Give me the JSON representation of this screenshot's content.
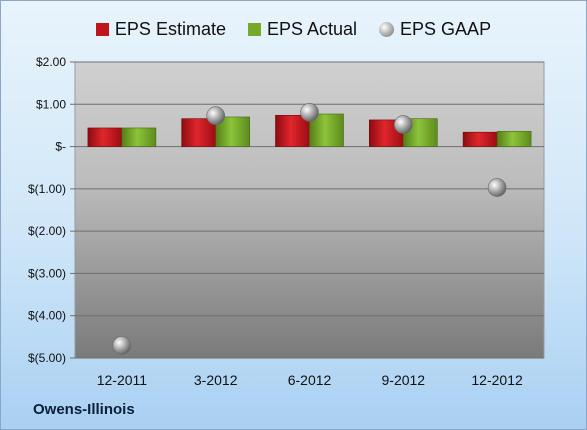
{
  "company": "Owens-Illinois",
  "chart_data": {
    "type": "bar",
    "categories": [
      "12-2011",
      "3-2012",
      "6-2012",
      "9-2012",
      "12-2012"
    ],
    "series": [
      {
        "name": "EPS Estimate",
        "kind": "bar",
        "color": "#c0141c",
        "values": [
          0.44,
          0.66,
          0.74,
          0.63,
          0.34
        ]
      },
      {
        "name": "EPS Actual",
        "kind": "bar",
        "color": "#76a82a",
        "values": [
          0.44,
          0.7,
          0.77,
          0.66,
          0.36
        ]
      },
      {
        "name": "EPS GAAP",
        "kind": "marker",
        "color": "#9a9a9a",
        "values": [
          -4.7,
          0.73,
          0.81,
          0.52,
          -0.97
        ]
      }
    ],
    "ylim": [
      -5,
      2
    ],
    "yticks": [
      2,
      1,
      0,
      -1,
      -2,
      -3,
      -4,
      -5
    ],
    "ytick_labels": [
      "$2.00",
      "$1.00",
      "$-",
      "$(1.00)",
      "$(2.00)",
      "$(3.00)",
      "$(4.00)",
      "$(5.00)"
    ],
    "grid": true,
    "legend_position": "top"
  }
}
